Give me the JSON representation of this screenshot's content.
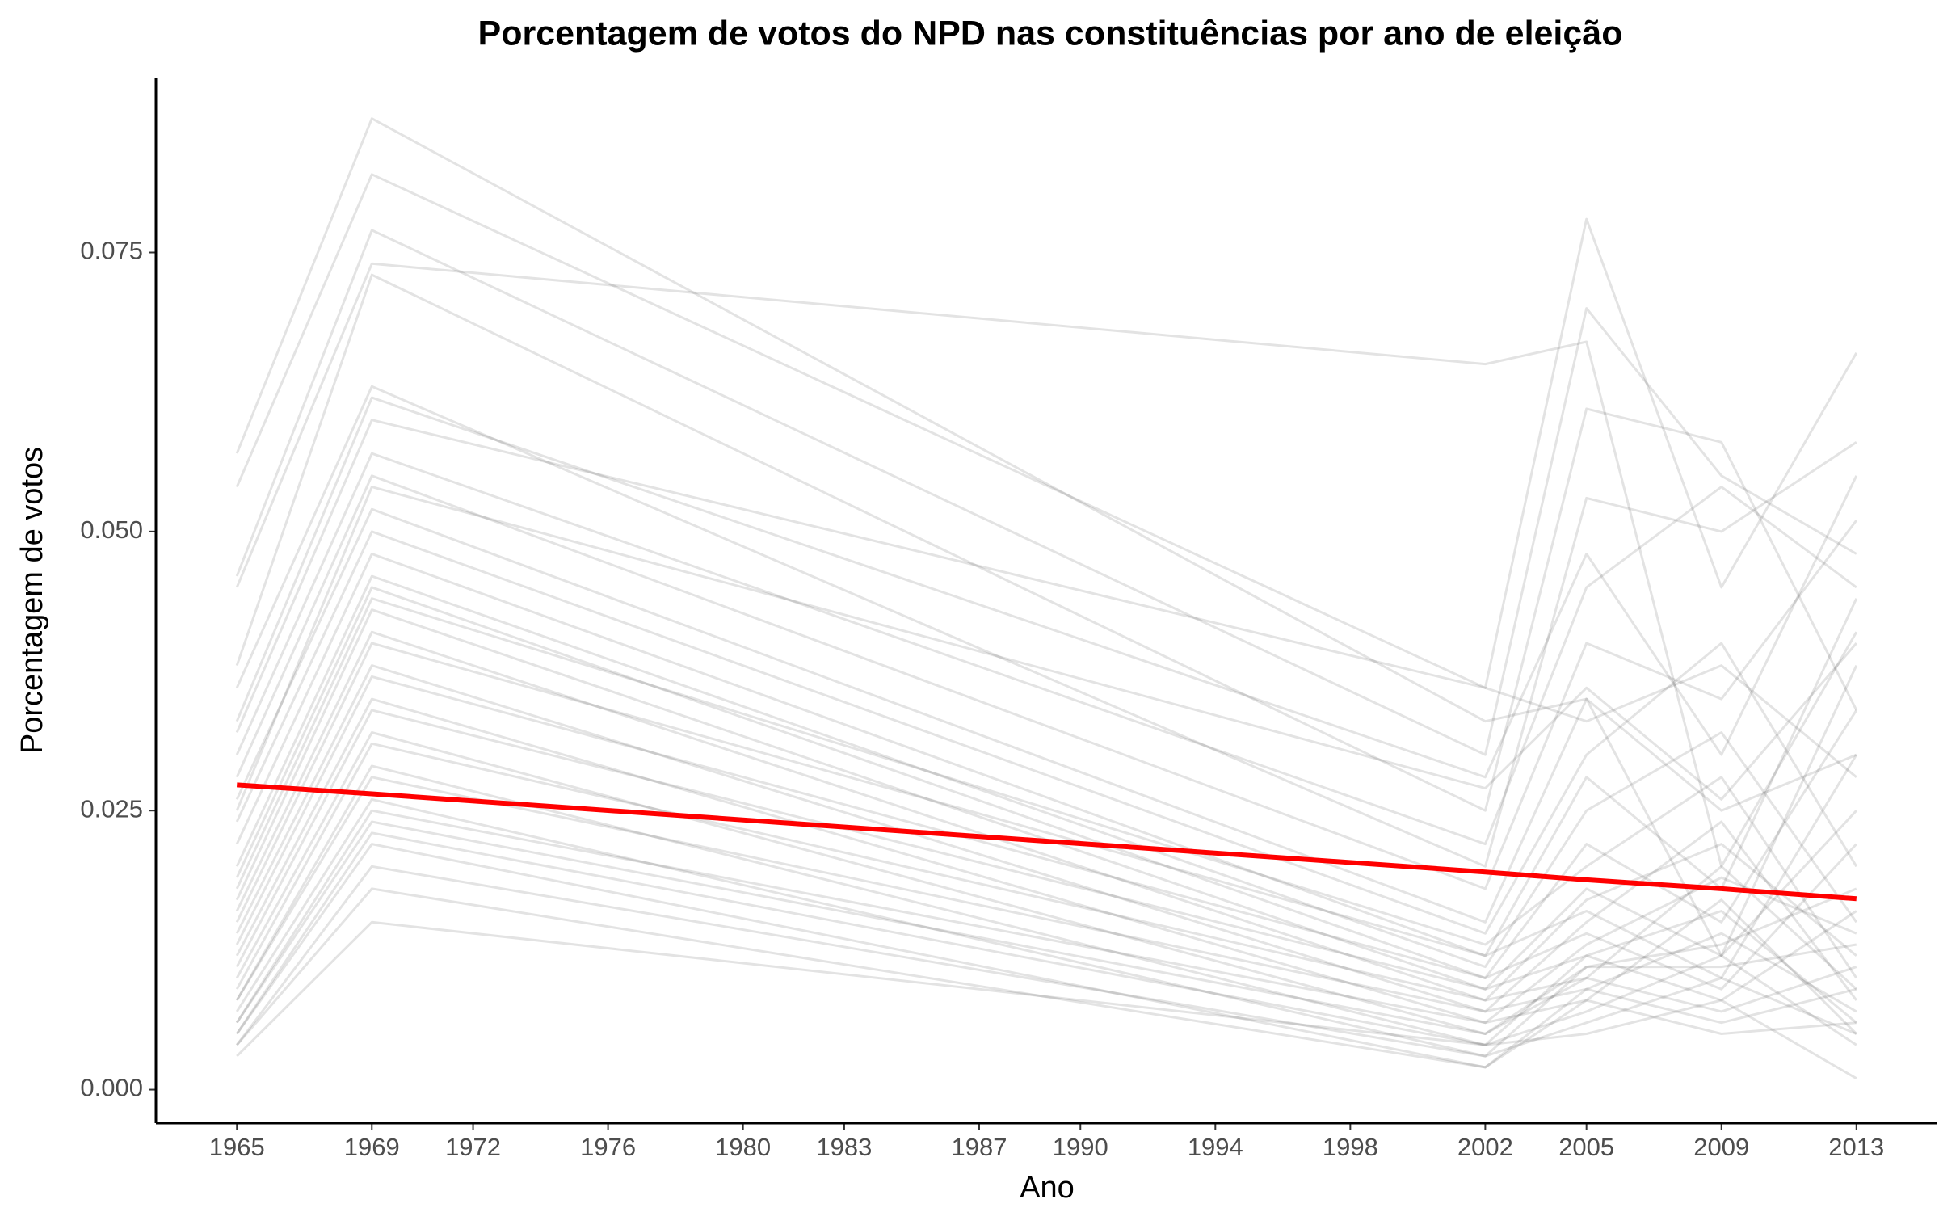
{
  "chart_data": {
    "type": "line",
    "title": "Porcentagem de votos do NPD nas constituências por ano de eleição",
    "x_label": "Ano",
    "y_label": "Porcentagem de votos",
    "x": [
      1965,
      1969,
      2002,
      2005,
      2009,
      2013
    ],
    "xlim": [
      1962.6,
      2015.4
    ],
    "xticks": [
      1965,
      1969,
      1972,
      1976,
      1980,
      1983,
      1987,
      1990,
      1994,
      1998,
      2002,
      2005,
      2009,
      2013
    ],
    "ylim": [
      -0.003,
      0.0906
    ],
    "yticks": [
      {
        "value": 0,
        "label": "0.000"
      },
      {
        "value": 0.025,
        "label": "0.025"
      },
      {
        "value": 0.05,
        "label": "0.050"
      },
      {
        "value": 0.075,
        "label": "0.075"
      }
    ],
    "line_opacity": 0.11,
    "series": [
      {
        "color": "#000000",
        "values": [
          0.057,
          0.087,
          0.033,
          0.035,
          0.025,
          0.03
        ]
      },
      {
        "color": "#000000",
        "values": [
          0.054,
          0.082,
          0.036,
          0.078,
          0.045,
          0.066
        ]
      },
      {
        "color": "#000000",
        "values": [
          0.046,
          0.077,
          0.03,
          0.07,
          0.055,
          0.048
        ]
      },
      {
        "color": "#000000",
        "values": [
          0.045,
          0.074,
          0.065,
          0.067,
          0.02,
          0.041
        ]
      },
      {
        "color": "#000000",
        "values": [
          0.038,
          0.073,
          0.025,
          0.061,
          0.058,
          0.034
        ]
      },
      {
        "color": "#000000",
        "values": [
          0.036,
          0.063,
          0.02,
          0.053,
          0.05,
          0.058
        ]
      },
      {
        "color": "#000000",
        "values": [
          0.033,
          0.062,
          0.028,
          0.048,
          0.03,
          0.055
        ]
      },
      {
        "color": "#000000",
        "values": [
          0.03,
          0.057,
          0.022,
          0.045,
          0.054,
          0.045
        ]
      },
      {
        "color": "#000000",
        "values": [
          0.028,
          0.055,
          0.018,
          0.04,
          0.035,
          0.051
        ]
      },
      {
        "color": "#000000",
        "values": [
          0.026,
          0.052,
          0.015,
          0.035,
          0.012,
          0.038
        ]
      },
      {
        "color": "#000000",
        "values": [
          0.024,
          0.05,
          0.014,
          0.03,
          0.04,
          0.02
        ]
      },
      {
        "color": "#000000",
        "values": [
          0.022,
          0.048,
          0.012,
          0.028,
          0.018,
          0.044
        ]
      },
      {
        "color": "#000000",
        "values": [
          0.02,
          0.046,
          0.011,
          0.025,
          0.032,
          0.015
        ]
      },
      {
        "color": "#000000",
        "values": [
          0.019,
          0.045,
          0.01,
          0.022,
          0.015,
          0.034
        ]
      },
      {
        "color": "#000000",
        "values": [
          0.018,
          0.044,
          0.013,
          0.02,
          0.028,
          0.01
        ]
      },
      {
        "color": "#000000",
        "values": [
          0.017,
          0.043,
          0.009,
          0.018,
          0.012,
          0.025
        ]
      },
      {
        "color": "#000000",
        "values": [
          0.016,
          0.041,
          0.008,
          0.017,
          0.022,
          0.012
        ]
      },
      {
        "color": "#000000",
        "values": [
          0.015,
          0.04,
          0.012,
          0.016,
          0.01,
          0.03
        ]
      },
      {
        "color": "#000000",
        "values": [
          0.014,
          0.038,
          0.007,
          0.015,
          0.024,
          0.008
        ]
      },
      {
        "color": "#000000",
        "values": [
          0.013,
          0.037,
          0.01,
          0.014,
          0.009,
          0.022
        ]
      },
      {
        "color": "#000000",
        "values": [
          0.012,
          0.035,
          0.006,
          0.013,
          0.019,
          0.014
        ]
      },
      {
        "color": "#000000",
        "values": [
          0.011,
          0.034,
          0.009,
          0.012,
          0.016,
          0.006
        ]
      },
      {
        "color": "#000000",
        "values": [
          0.01,
          0.032,
          0.005,
          0.011,
          0.013,
          0.018
        ]
      },
      {
        "color": "#000000",
        "values": [
          0.009,
          0.031,
          0.008,
          0.01,
          0.02,
          0.009
        ]
      },
      {
        "color": "#000000",
        "values": [
          0.008,
          0.029,
          0.004,
          0.012,
          0.008,
          0.016
        ]
      },
      {
        "color": "#000000",
        "values": [
          0.008,
          0.028,
          0.007,
          0.009,
          0.014,
          0.007
        ]
      },
      {
        "color": "#000000",
        "values": [
          0.007,
          0.026,
          0.003,
          0.011,
          0.011,
          0.013
        ]
      },
      {
        "color": "#000000",
        "values": [
          0.006,
          0.025,
          0.006,
          0.008,
          0.017,
          0.005
        ]
      },
      {
        "color": "#000000",
        "values": [
          0.006,
          0.024,
          0.005,
          0.01,
          0.007,
          0.011
        ]
      },
      {
        "color": "#000000",
        "values": [
          0.005,
          0.023,
          0.004,
          0.007,
          0.012,
          0.004
        ]
      },
      {
        "color": "#000000",
        "values": [
          0.005,
          0.022,
          0.002,
          0.009,
          0.006,
          0.009
        ]
      },
      {
        "color": "#000000",
        "values": [
          0.004,
          0.02,
          0.003,
          0.006,
          0.01,
          0.005
        ]
      },
      {
        "color": "#000000",
        "values": [
          0.004,
          0.018,
          0.002,
          0.008,
          0.005,
          0.006
        ]
      },
      {
        "color": "#000000",
        "values": [
          0.003,
          0.015,
          0.004,
          0.005,
          0.008,
          0.001
        ]
      },
      {
        "color": "#000000",
        "values": [
          0.032,
          0.06,
          0.036,
          0.033,
          0.038,
          0.028
        ]
      },
      {
        "color": "#000000",
        "values": [
          0.025,
          0.054,
          0.027,
          0.036,
          0.026,
          0.04
        ]
      },
      {
        "color": "#ff0000",
        "values": [
          0.0273,
          0.0265,
          0.0195,
          0.0188,
          0.018,
          0.0171
        ],
        "width": 6
      }
    ]
  }
}
